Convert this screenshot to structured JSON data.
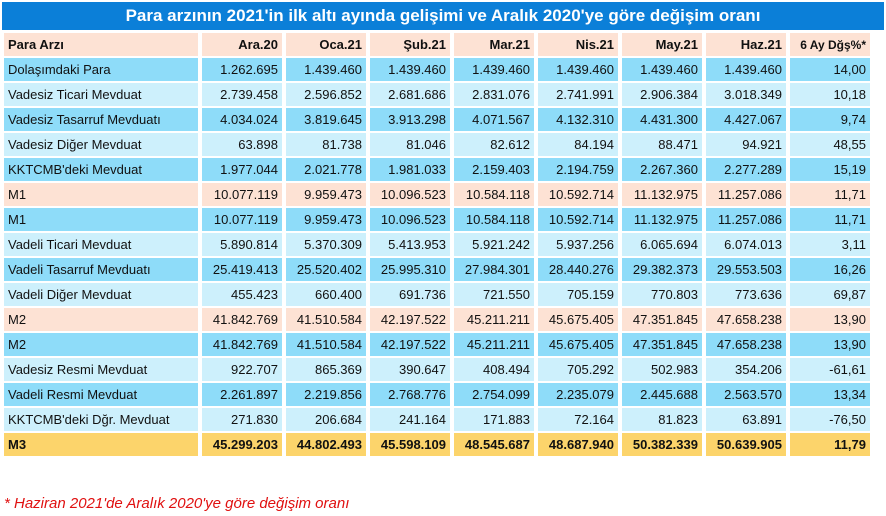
{
  "title": "Para arzının 2021'in ilk altı ayında gelişimi ve Aralık 2020'ye göre değişim oranı",
  "columns": [
    "Para Arzı",
    "Ara.20",
    "Oca.21",
    "Şub.21",
    "Mar.21",
    "Nis.21",
    "May.21",
    "Haz.21",
    "6 Ay Dğş%*"
  ],
  "rows": [
    {
      "style": "dark",
      "cells": [
        "Dolaşımdaki Para",
        "1.262.695",
        "1.439.460",
        "1.439.460",
        "1.439.460",
        "1.439.460",
        "1.439.460",
        "1.439.460",
        "14,00"
      ]
    },
    {
      "style": "light",
      "cells": [
        "Vadesiz Ticari Mevduat",
        "2.739.458",
        "2.596.852",
        "2.681.686",
        "2.831.076",
        "2.741.991",
        "2.906.384",
        "3.018.349",
        "10,18"
      ]
    },
    {
      "style": "dark",
      "cells": [
        "Vadesiz Tasarruf Mevduatı",
        "4.034.024",
        "3.819.645",
        "3.913.298",
        "4.071.567",
        "4.132.310",
        "4.431.300",
        "4.427.067",
        "9,74"
      ]
    },
    {
      "style": "light",
      "cells": [
        "Vadesiz Diğer Mevduat",
        "63.898",
        "81.738",
        "81.046",
        "82.612",
        "84.194",
        "88.471",
        "94.921",
        "48,55"
      ]
    },
    {
      "style": "dark",
      "cells": [
        "KKTCMB'deki Mevduat",
        "1.977.044",
        "2.021.778",
        "1.981.033",
        "2.159.403",
        "2.194.759",
        "2.267.360",
        "2.277.289",
        "15,19"
      ]
    },
    {
      "style": "peach",
      "cells": [
        "M1",
        "10.077.119",
        "9.959.473",
        "10.096.523",
        "10.584.118",
        "10.592.714",
        "11.132.975",
        "11.257.086",
        "11,71"
      ]
    },
    {
      "style": "dark",
      "cells": [
        "M1",
        "10.077.119",
        "9.959.473",
        "10.096.523",
        "10.584.118",
        "10.592.714",
        "11.132.975",
        "11.257.086",
        "11,71"
      ]
    },
    {
      "style": "light",
      "cells": [
        "Vadeli Ticari Mevduat",
        "5.890.814",
        "5.370.309",
        "5.413.953",
        "5.921.242",
        "5.937.256",
        "6.065.694",
        "6.074.013",
        "3,11"
      ]
    },
    {
      "style": "dark",
      "cells": [
        "Vadeli Tasarruf Mevduatı",
        "25.419.413",
        "25.520.402",
        "25.995.310",
        "27.984.301",
        "28.440.276",
        "29.382.373",
        "29.553.503",
        "16,26"
      ]
    },
    {
      "style": "light",
      "cells": [
        "Vadeli Diğer Mevduat",
        "455.423",
        "660.400",
        "691.736",
        "721.550",
        "705.159",
        "770.803",
        "773.636",
        "69,87"
      ]
    },
    {
      "style": "peach",
      "cells": [
        "M2",
        "41.842.769",
        "41.510.584",
        "42.197.522",
        "45.211.211",
        "45.675.405",
        "47.351.845",
        "47.658.238",
        "13,90"
      ]
    },
    {
      "style": "dark",
      "cells": [
        "M2",
        "41.842.769",
        "41.510.584",
        "42.197.522",
        "45.211.211",
        "45.675.405",
        "47.351.845",
        "47.658.238",
        "13,90"
      ]
    },
    {
      "style": "light",
      "cells": [
        "Vadesiz Resmi Mevduat",
        "922.707",
        "865.369",
        "390.647",
        "408.494",
        "705.292",
        "502.983",
        "354.206",
        "-61,61"
      ]
    },
    {
      "style": "dark",
      "cells": [
        "Vadeli Resmi Mevduat",
        "2.261.897",
        "2.219.856",
        "2.768.776",
        "2.754.099",
        "2.235.079",
        "2.445.688",
        "2.563.570",
        "13,34"
      ]
    },
    {
      "style": "light",
      "cells": [
        "KKTCMB'deki Dğr. Mevduat",
        "271.830",
        "206.684",
        "241.164",
        "171.883",
        "72.164",
        "81.823",
        "63.891",
        "-76,50"
      ]
    },
    {
      "style": "gold",
      "cells": [
        "M3",
        "45.299.203",
        "44.802.493",
        "45.598.109",
        "48.545.687",
        "48.687.940",
        "50.382.339",
        "50.639.905",
        "11,79"
      ]
    }
  ],
  "footnote": "* Haziran 2021'de Aralık 2020'ye göre değişim oranı",
  "colors": {
    "title_bg": "#0b7fd8",
    "peach": "#fde2d4",
    "dark": "#8edcf9",
    "light": "#cdf0fc",
    "gold": "#fcd46b",
    "note": "#e01010"
  }
}
